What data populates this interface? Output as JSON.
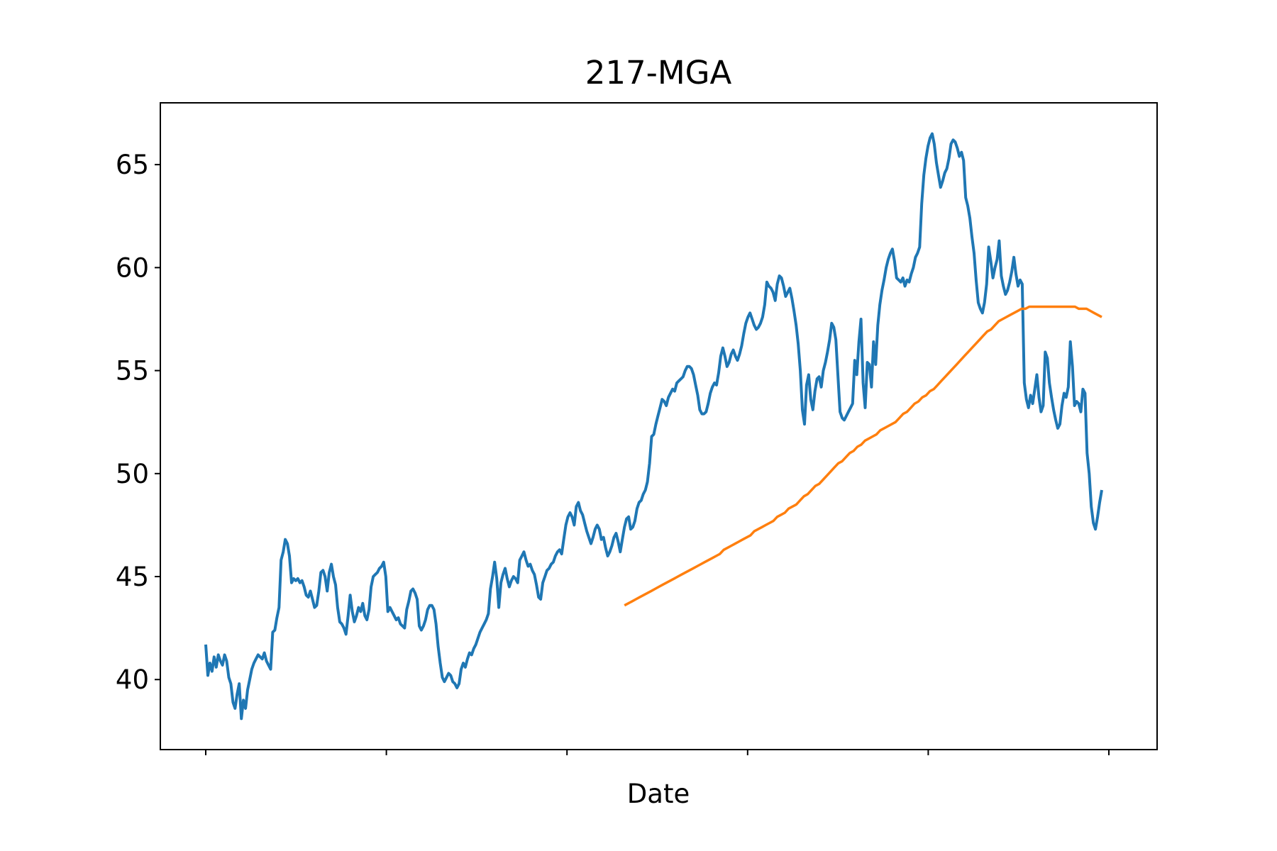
{
  "chart_data": {
    "type": "line",
    "title": "217-MGA",
    "xlabel": "Date",
    "ylabel": "",
    "ylim": [
      36.6,
      68.0
    ],
    "yticks": [
      40,
      45,
      50,
      55,
      60,
      65
    ],
    "x_tick_count": 6,
    "x_tick_labels": [],
    "grid": false,
    "legend": "none",
    "series": [
      {
        "color": "#1f77b4",
        "values": [
          41.7,
          40.2,
          40.8,
          40.4,
          41.1,
          40.6,
          41.2,
          40.9,
          40.7,
          41.2,
          40.9,
          40.1,
          39.8,
          38.9,
          38.6,
          39.3,
          39.8,
          38.1,
          39.0,
          38.6,
          39.5,
          40.0,
          40.5,
          40.8,
          41.0,
          41.2,
          41.1,
          41.0,
          41.3,
          40.9,
          40.7,
          40.5,
          42.3,
          42.4,
          43.0,
          43.5,
          45.8,
          46.2,
          46.8,
          46.6,
          46.0,
          44.7,
          44.9,
          44.8,
          44.9,
          44.7,
          44.8,
          44.5,
          44.1,
          44.0,
          44.3,
          43.9,
          43.5,
          43.6,
          44.3,
          45.2,
          45.3,
          45.0,
          44.3,
          45.2,
          45.6,
          45.0,
          44.6,
          43.5,
          42.8,
          42.7,
          42.5,
          42.2,
          43.1,
          44.1,
          43.3,
          42.8,
          43.1,
          43.5,
          43.3,
          43.7,
          43.1,
          42.9,
          43.4,
          44.5,
          45.0,
          45.1,
          45.2,
          45.4,
          45.5,
          45.7,
          45.0,
          43.3,
          43.5,
          43.3,
          43.1,
          42.9,
          43.0,
          42.7,
          42.6,
          42.5,
          43.4,
          43.8,
          44.3,
          44.4,
          44.2,
          43.9,
          42.6,
          42.4,
          42.6,
          42.9,
          43.4,
          43.6,
          43.6,
          43.4,
          42.7,
          41.6,
          40.8,
          40.1,
          39.9,
          40.1,
          40.3,
          40.2,
          39.9,
          39.8,
          39.6,
          39.8,
          40.5,
          40.8,
          40.6,
          41.0,
          41.3,
          41.2,
          41.5,
          41.7,
          42.0,
          42.3,
          42.5,
          42.7,
          42.9,
          43.2,
          44.4,
          45.0,
          45.7,
          44.9,
          43.5,
          44.7,
          45.1,
          45.4,
          44.9,
          44.5,
          44.8,
          45.0,
          44.9,
          44.7,
          45.8,
          46.0,
          46.2,
          45.8,
          45.5,
          45.6,
          45.3,
          45.1,
          44.6,
          44.0,
          43.9,
          44.7,
          45.0,
          45.3,
          45.4,
          45.6,
          45.7,
          46.0,
          46.2,
          46.3,
          46.1,
          46.8,
          47.5,
          47.9,
          48.1,
          47.9,
          47.5,
          48.4,
          48.6,
          48.2,
          48.0,
          47.6,
          47.2,
          46.9,
          46.6,
          46.9,
          47.3,
          47.5,
          47.3,
          46.8,
          46.9,
          46.4,
          46.0,
          46.2,
          46.5,
          46.9,
          47.1,
          46.7,
          46.2,
          46.8,
          47.4,
          47.8,
          47.9,
          47.3,
          47.4,
          47.7,
          48.3,
          48.6,
          48.7,
          49.0,
          49.2,
          49.6,
          50.5,
          51.8,
          51.9,
          52.4,
          52.8,
          53.2,
          53.6,
          53.5,
          53.3,
          53.7,
          53.9,
          54.1,
          54.0,
          54.4,
          54.5,
          54.6,
          54.7,
          55.0,
          55.2,
          55.2,
          55.1,
          54.8,
          54.3,
          53.8,
          53.1,
          52.9,
          52.9,
          53.0,
          53.4,
          53.9,
          54.2,
          54.4,
          54.3,
          54.9,
          55.7,
          56.1,
          55.7,
          55.2,
          55.4,
          55.8,
          56.0,
          55.7,
          55.5,
          55.8,
          56.2,
          56.8,
          57.3,
          57.6,
          57.8,
          57.5,
          57.2,
          57.0,
          57.1,
          57.3,
          57.6,
          58.2,
          59.3,
          59.1,
          59.0,
          58.8,
          58.4,
          59.2,
          59.6,
          59.5,
          59.1,
          58.6,
          58.8,
          59.0,
          58.5,
          57.9,
          57.2,
          56.3,
          55.0,
          53.1,
          52.4,
          54.3,
          54.8,
          53.6,
          53.1,
          54.0,
          54.6,
          54.7,
          54.2,
          55.0,
          55.4,
          55.9,
          56.5,
          57.3,
          57.1,
          56.5,
          54.7,
          53.0,
          52.7,
          52.6,
          52.8,
          53.0,
          53.2,
          53.4,
          55.5,
          54.8,
          56.4,
          57.5,
          54.4,
          53.2,
          55.4,
          55.3,
          54.2,
          56.4,
          55.3,
          57.2,
          58.2,
          58.9,
          59.4,
          60.0,
          60.4,
          60.7,
          60.9,
          60.3,
          59.5,
          59.4,
          59.3,
          59.5,
          59.1,
          59.4,
          59.3,
          59.7,
          60.0,
          60.5,
          60.7,
          61.0,
          63.1,
          64.5,
          65.3,
          65.9,
          66.3,
          66.5,
          66.0,
          65.1,
          64.5,
          63.9,
          64.2,
          64.6,
          64.8,
          65.3,
          66.0,
          66.2,
          66.1,
          65.8,
          65.4,
          65.6,
          65.2,
          63.4,
          63.0,
          62.4,
          61.5,
          60.7,
          59.4,
          58.3,
          58.0,
          57.8,
          58.3,
          59.2,
          61.0,
          60.3,
          59.5,
          60.0,
          60.4,
          61.3,
          59.6,
          59.1,
          58.7,
          58.9,
          59.3,
          59.8,
          60.5,
          59.7,
          59.1,
          59.4,
          59.2,
          54.4,
          53.6,
          53.2,
          53.8,
          53.4,
          54.1,
          54.8,
          53.7,
          53.0,
          53.3,
          55.9,
          55.6,
          54.4,
          53.7,
          53.1,
          52.6,
          52.2,
          52.4,
          53.3,
          53.9,
          53.7,
          54.2,
          56.4,
          55.2,
          53.3,
          53.5,
          53.4,
          53.0,
          54.1,
          53.9,
          51.0,
          50.0,
          48.4,
          47.6,
          47.3,
          47.9,
          48.6,
          49.2
        ]
      },
      {
        "color": "#ff7f0e",
        "start_index": 200,
        "values": [
          43.6,
          43.7,
          43.8,
          43.9,
          44.0,
          44.1,
          44.2,
          44.3,
          44.4,
          44.5,
          44.6,
          44.7,
          44.8,
          44.9,
          45.0,
          45.1,
          45.2,
          45.3,
          45.4,
          45.5,
          45.6,
          45.7,
          45.8,
          45.9,
          46.0,
          46.1,
          46.3,
          46.4,
          46.5,
          46.6,
          46.7,
          46.8,
          46.9,
          47.0,
          47.2,
          47.3,
          47.4,
          47.5,
          47.6,
          47.7,
          47.9,
          48.0,
          48.1,
          48.3,
          48.4,
          48.5,
          48.7,
          48.9,
          49.0,
          49.2,
          49.4,
          49.5,
          49.7,
          49.9,
          50.1,
          50.3,
          50.5,
          50.6,
          50.8,
          51.0,
          51.1,
          51.3,
          51.4,
          51.6,
          51.7,
          51.8,
          51.9,
          52.1,
          52.2,
          52.3,
          52.4,
          52.5,
          52.7,
          52.9,
          53.0,
          53.2,
          53.4,
          53.5,
          53.7,
          53.8,
          54.0,
          54.1,
          54.3,
          54.5,
          54.7,
          54.9,
          55.1,
          55.3,
          55.5,
          55.7,
          55.9,
          56.1,
          56.3,
          56.5,
          56.7,
          56.9,
          57.0,
          57.2,
          57.4,
          57.5,
          57.6,
          57.7,
          57.8,
          57.9,
          58.0,
          58.0,
          58.1,
          58.1,
          58.1,
          58.1,
          58.1,
          58.1,
          58.1,
          58.1,
          58.1,
          58.1,
          58.1,
          58.1,
          58.1,
          58.0,
          58.0,
          58.0,
          57.9,
          57.8,
          57.7,
          57.6
        ]
      }
    ]
  }
}
